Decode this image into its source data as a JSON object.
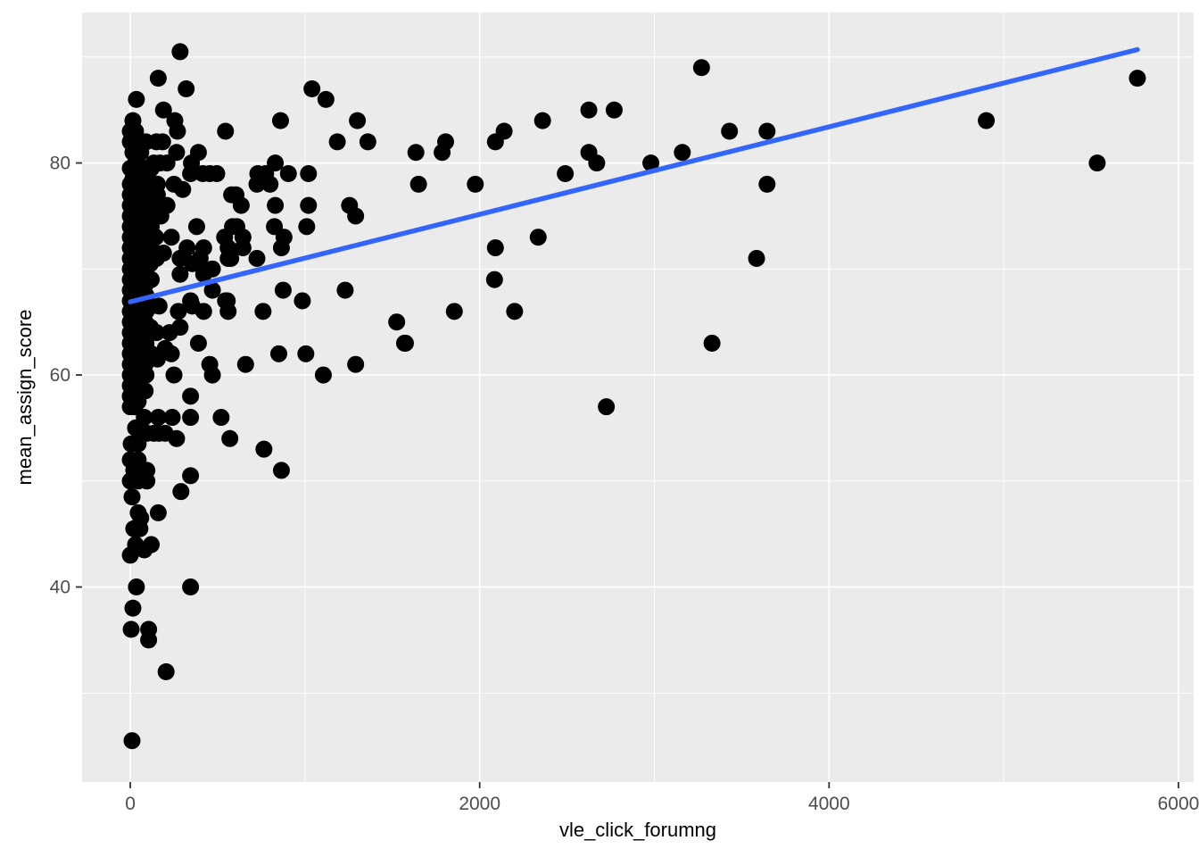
{
  "chart_data": {
    "type": "scatter",
    "title": "",
    "xlabel": "vle_click_forumng",
    "ylabel": "mean_assign_score",
    "xlim": [
      -276,
      6087
    ],
    "ylim": [
      21.6,
      94.2
    ],
    "x_major_ticks": [
      0,
      2000,
      4000,
      6000
    ],
    "x_minor_ticks": [
      1000,
      3000,
      5000
    ],
    "y_major_ticks": [
      40,
      60,
      80
    ],
    "y_minor_ticks": [
      30,
      50,
      70,
      90
    ],
    "grid": "on",
    "legend": "none",
    "style": {
      "panel_bg": "#EBEBEB",
      "grid_color": "#FFFFFF",
      "point_color": "#000000",
      "trend_color": "#3366FF",
      "tick_label_color": "#4D4D4D",
      "tick_mark_color": "#333333"
    },
    "trend_line": {
      "type": "linear",
      "x1": 0,
      "y1": 66.9,
      "x2": 5765,
      "y2": 90.7
    },
    "points": [
      [
        285,
        90.5
      ],
      [
        160,
        88
      ],
      [
        320,
        87
      ],
      [
        35,
        86
      ],
      [
        190,
        85
      ],
      [
        15,
        84
      ],
      [
        255,
        84
      ],
      [
        270,
        83
      ],
      [
        545,
        83
      ],
      [
        0,
        83
      ],
      [
        30,
        83
      ],
      [
        0,
        82
      ],
      [
        60,
        82
      ],
      [
        90,
        82
      ],
      [
        150,
        82
      ],
      [
        185,
        82
      ],
      [
        15,
        81
      ],
      [
        30,
        81
      ],
      [
        60,
        81
      ],
      [
        265,
        81
      ],
      [
        390,
        81
      ],
      [
        30,
        80
      ],
      [
        135,
        80
      ],
      [
        170,
        80
      ],
      [
        210,
        80
      ],
      [
        350,
        80
      ],
      [
        345,
        79
      ],
      [
        415,
        79
      ],
      [
        455,
        79
      ],
      [
        495,
        79
      ],
      [
        1040,
        87
      ],
      [
        1120,
        86
      ],
      [
        860,
        84
      ],
      [
        1300,
        84
      ],
      [
        1185,
        82
      ],
      [
        1360,
        82
      ],
      [
        830,
        80
      ],
      [
        730,
        79
      ],
      [
        775,
        79
      ],
      [
        905,
        79
      ],
      [
        1020,
        79
      ],
      [
        725,
        78
      ],
      [
        800,
        78
      ],
      [
        580,
        77
      ],
      [
        605,
        77
      ],
      [
        635,
        76
      ],
      [
        830,
        76
      ],
      [
        1020,
        76
      ],
      [
        1255,
        76
      ],
      [
        1290,
        75
      ],
      [
        585,
        74
      ],
      [
        610,
        74
      ],
      [
        825,
        74
      ],
      [
        1010,
        74
      ],
      [
        645,
        73
      ],
      [
        880,
        73
      ],
      [
        2625,
        85
      ],
      [
        2770,
        85
      ],
      [
        2360,
        84
      ],
      [
        2140,
        83
      ],
      [
        2090,
        82
      ],
      [
        1805,
        82
      ],
      [
        1635,
        81
      ],
      [
        1785,
        81
      ],
      [
        2625,
        81
      ],
      [
        2670,
        80
      ],
      [
        2980,
        80
      ],
      [
        2490,
        79
      ],
      [
        1650,
        78
      ],
      [
        1975,
        78
      ],
      [
        3270,
        89
      ],
      [
        3430,
        83
      ],
      [
        3645,
        83
      ],
      [
        3160,
        81
      ],
      [
        3645,
        78
      ],
      [
        5765,
        88
      ],
      [
        4900,
        84
      ],
      [
        5535,
        80
      ],
      [
        2335,
        73
      ],
      [
        2090,
        72
      ],
      [
        2085,
        69
      ],
      [
        1855,
        66
      ],
      [
        2200,
        66
      ],
      [
        3585,
        71
      ],
      [
        3330,
        63
      ],
      [
        1575,
        63
      ],
      [
        2725,
        57
      ],
      [
        645,
        72
      ],
      [
        865,
        72
      ],
      [
        575,
        71
      ],
      [
        725,
        71
      ],
      [
        875,
        68
      ],
      [
        1230,
        68
      ],
      [
        985,
        67
      ],
      [
        555,
        67
      ],
      [
        560,
        66
      ],
      [
        760,
        66
      ],
      [
        1525,
        65
      ],
      [
        1570,
        63
      ],
      [
        850,
        62
      ],
      [
        1005,
        62
      ],
      [
        660,
        61
      ],
      [
        1290,
        61
      ],
      [
        1105,
        60
      ],
      [
        380,
        74
      ],
      [
        235,
        73
      ],
      [
        540,
        73
      ],
      [
        325,
        72
      ],
      [
        420,
        72
      ],
      [
        560,
        72
      ],
      [
        285,
        71
      ],
      [
        400,
        71
      ],
      [
        560,
        71
      ],
      [
        355,
        70.5
      ],
      [
        470,
        70
      ],
      [
        285,
        69.5
      ],
      [
        420,
        69.5
      ],
      [
        470,
        68
      ],
      [
        345,
        67
      ],
      [
        545,
        67
      ],
      [
        165,
        66.5
      ],
      [
        275,
        66
      ],
      [
        355,
        66.5
      ],
      [
        420,
        66
      ],
      [
        225,
        64
      ],
      [
        285,
        64.5
      ],
      [
        390,
        63
      ],
      [
        200,
        62.5
      ],
      [
        235,
        62
      ],
      [
        455,
        61
      ],
      [
        250,
        60
      ],
      [
        470,
        60
      ],
      [
        345,
        58
      ],
      [
        80,
        56
      ],
      [
        160,
        56
      ],
      [
        240,
        56
      ],
      [
        345,
        56
      ],
      [
        520,
        56
      ],
      [
        30,
        55
      ],
      [
        60,
        54.5
      ],
      [
        95,
        54.5
      ],
      [
        135,
        54.5
      ],
      [
        165,
        54.5
      ],
      [
        200,
        54.5
      ],
      [
        265,
        54
      ],
      [
        570,
        54
      ],
      [
        5,
        53.5
      ],
      [
        45,
        53.5
      ],
      [
        765,
        53
      ],
      [
        865,
        51
      ],
      [
        0,
        52
      ],
      [
        45,
        52
      ],
      [
        20,
        51
      ],
      [
        70,
        51
      ],
      [
        95,
        51
      ],
      [
        0,
        50
      ],
      [
        45,
        50
      ],
      [
        95,
        50
      ],
      [
        345,
        50.5
      ],
      [
        290,
        49
      ],
      [
        10,
        48.5
      ],
      [
        45,
        47
      ],
      [
        160,
        47
      ],
      [
        60,
        46.5
      ],
      [
        20,
        45.5
      ],
      [
        55,
        45.5
      ],
      [
        30,
        44
      ],
      [
        120,
        44
      ],
      [
        0,
        43
      ],
      [
        80,
        43.5
      ],
      [
        35,
        40
      ],
      [
        345,
        40
      ],
      [
        15,
        38
      ],
      [
        5,
        36
      ],
      [
        105,
        36
      ],
      [
        105,
        35
      ],
      [
        205,
        32
      ],
      [
        10,
        25.5
      ],
      [
        0,
        79.5
      ],
      [
        30,
        79.5
      ],
      [
        60,
        79.5
      ],
      [
        90,
        79.5
      ],
      [
        120,
        79.5
      ],
      [
        15,
        78.5
      ],
      [
        45,
        78.5
      ],
      [
        75,
        78.5
      ],
      [
        105,
        78.5
      ],
      [
        0,
        78
      ],
      [
        30,
        78
      ],
      [
        60,
        78
      ],
      [
        90,
        78
      ],
      [
        125,
        78
      ],
      [
        155,
        78
      ],
      [
        250,
        78
      ],
      [
        300,
        77.5
      ],
      [
        0,
        77
      ],
      [
        30,
        77
      ],
      [
        60,
        77
      ],
      [
        90,
        77
      ],
      [
        120,
        77
      ],
      [
        155,
        77
      ],
      [
        15,
        76.5
      ],
      [
        45,
        76.5
      ],
      [
        0,
        76
      ],
      [
        30,
        76
      ],
      [
        65,
        76
      ],
      [
        95,
        76
      ],
      [
        130,
        76
      ],
      [
        210,
        76
      ],
      [
        0,
        75
      ],
      [
        25,
        75
      ],
      [
        55,
        75
      ],
      [
        85,
        75
      ],
      [
        115,
        75
      ],
      [
        145,
        75
      ],
      [
        175,
        75
      ],
      [
        10,
        74.5
      ],
      [
        40,
        74.5
      ],
      [
        0,
        74
      ],
      [
        30,
        74
      ],
      [
        60,
        74
      ],
      [
        90,
        74
      ],
      [
        120,
        74
      ],
      [
        0,
        73
      ],
      [
        25,
        73
      ],
      [
        55,
        73
      ],
      [
        85,
        73
      ],
      [
        115,
        73
      ],
      [
        145,
        73
      ],
      [
        0,
        72
      ],
      [
        30,
        72
      ],
      [
        60,
        72
      ],
      [
        90,
        72
      ],
      [
        120,
        72
      ],
      [
        190,
        71.5
      ],
      [
        0,
        71
      ],
      [
        25,
        71
      ],
      [
        55,
        71
      ],
      [
        85,
        71
      ],
      [
        150,
        71
      ],
      [
        115,
        70.5
      ],
      [
        0,
        70
      ],
      [
        30,
        70
      ],
      [
        60,
        70
      ],
      [
        90,
        70
      ],
      [
        0,
        69
      ],
      [
        25,
        69
      ],
      [
        55,
        69
      ],
      [
        120,
        69
      ],
      [
        85,
        68.5
      ],
      [
        0,
        68
      ],
      [
        30,
        68
      ],
      [
        60,
        68
      ],
      [
        90,
        67.5
      ],
      [
        0,
        67
      ],
      [
        25,
        67
      ],
      [
        55,
        67
      ],
      [
        120,
        66.5
      ],
      [
        0,
        66
      ],
      [
        30,
        66
      ],
      [
        60,
        66
      ],
      [
        90,
        66
      ],
      [
        0,
        65
      ],
      [
        25,
        65
      ],
      [
        55,
        65
      ],
      [
        85,
        65
      ],
      [
        115,
        64.5
      ],
      [
        0,
        64
      ],
      [
        30,
        64
      ],
      [
        60,
        64
      ],
      [
        150,
        64
      ],
      [
        0,
        63
      ],
      [
        25,
        63
      ],
      [
        55,
        63
      ],
      [
        90,
        63
      ],
      [
        0,
        62
      ],
      [
        30,
        62
      ],
      [
        60,
        62
      ],
      [
        120,
        62
      ],
      [
        155,
        61.5
      ],
      [
        0,
        61
      ],
      [
        25,
        61
      ],
      [
        85,
        61
      ],
      [
        55,
        60.5
      ],
      [
        0,
        60
      ],
      [
        30,
        60
      ],
      [
        60,
        60
      ],
      [
        90,
        60
      ],
      [
        0,
        59
      ],
      [
        25,
        59
      ],
      [
        55,
        59
      ],
      [
        85,
        58.5
      ],
      [
        0,
        58
      ],
      [
        30,
        58
      ],
      [
        15,
        57.5
      ],
      [
        45,
        57.5
      ],
      [
        0,
        57
      ],
      [
        25,
        57
      ]
    ]
  }
}
